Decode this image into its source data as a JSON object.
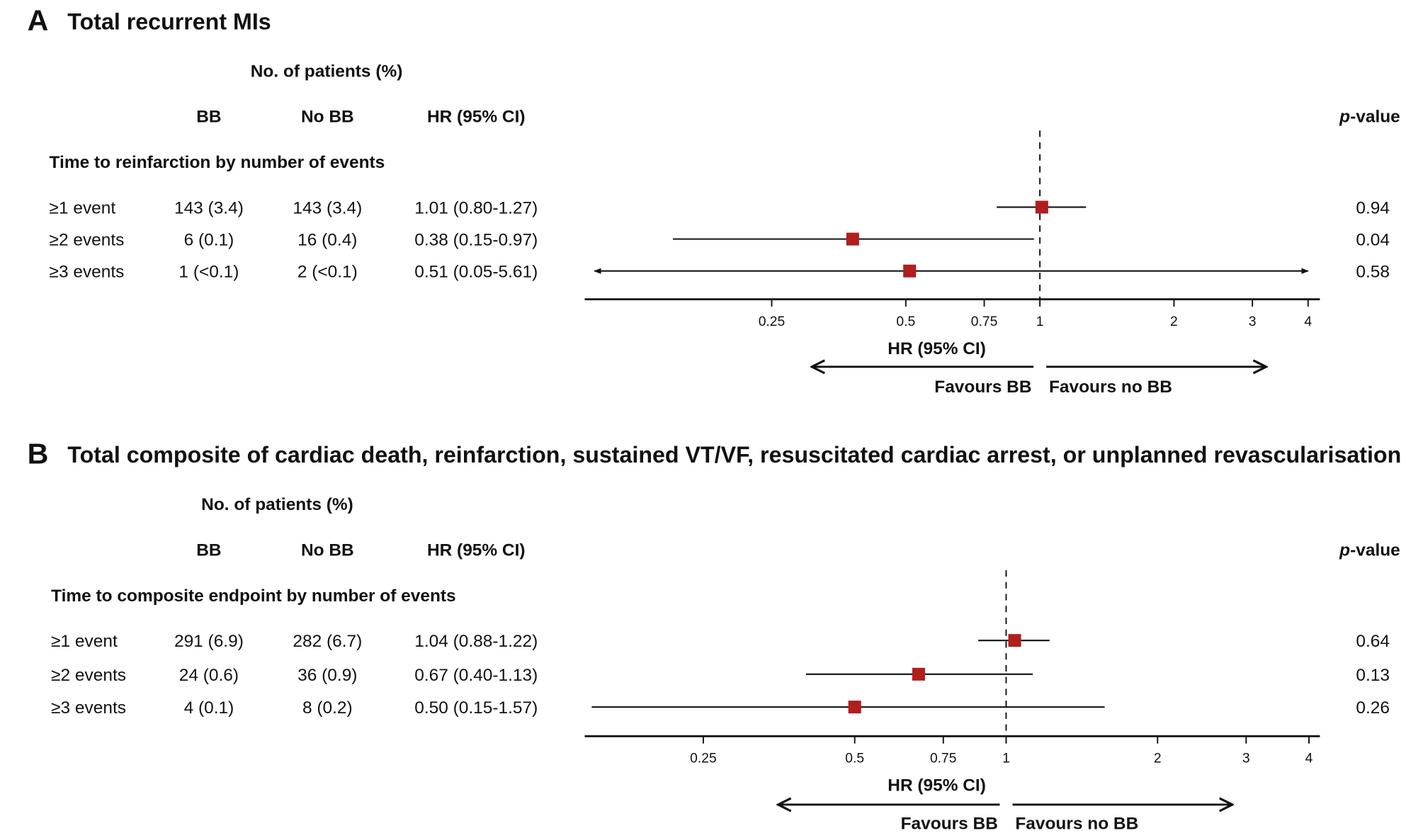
{
  "colors": {
    "marker": "#B01E1E",
    "line": "#111111"
  },
  "chart_data": [
    {
      "type": "forest",
      "panel_letter": "A",
      "title": "Total recurrent MIs",
      "group_header": "No. of patients (%)",
      "columns": {
        "bb": "BB",
        "nobb": "No BB",
        "hr": "HR (95% CI)",
        "p": "p-value",
        "p_italic": "p",
        "p_rest": "-value"
      },
      "subtitle": "Time to reinfarction by number of events",
      "xlabel": "HR (95% CI)",
      "xscale": "log",
      "xlim": [
        0.1,
        4
      ],
      "ticks": [
        "0.25",
        "0.5",
        "0.75",
        "1",
        "2",
        "3",
        "4"
      ],
      "favours_left": "Favours BB",
      "favours_right": "Favours no BB",
      "rows": [
        {
          "label": "≥1 event",
          "bb": "143 (3.4)",
          "nobb": "143 (3.4)",
          "hr_text": "1.01 (0.80-1.27)",
          "hr": 1.01,
          "lo": 0.8,
          "hi": 1.27,
          "p": "0.94"
        },
        {
          "label": "≥2 events",
          "bb": "6 (0.1)",
          "nobb": "16 (0.4)",
          "hr_text": "0.38 (0.15-0.97)",
          "hr": 0.38,
          "lo": 0.15,
          "hi": 0.97,
          "p": "0.04"
        },
        {
          "label": "≥3 events",
          "bb": "1 (<0.1)",
          "nobb": "2 (<0.1)",
          "hr_text": "0.51 (0.05-5.61)",
          "hr": 0.51,
          "lo": 0.05,
          "hi": 5.61,
          "p": "0.58"
        }
      ]
    },
    {
      "type": "forest",
      "panel_letter": "B",
      "title": "Total composite of cardiac death, reinfarction, sustained VT/VF, resuscitated cardiac arrest, or unplanned revascularisation",
      "group_header": "No. of patients (%)",
      "columns": {
        "bb": "BB",
        "nobb": "No BB",
        "hr": "HR (95% CI)",
        "p": "p-value",
        "p_italic": "p",
        "p_rest": "-value"
      },
      "subtitle": "Time to composite endpoint by number of events",
      "xlabel": "HR (95% CI)",
      "xscale": "log",
      "xlim": [
        0.145,
        4
      ],
      "ticks": [
        "0.25",
        "0.5",
        "0.75",
        "1",
        "2",
        "3",
        "4"
      ],
      "favours_left": "Favours BB",
      "favours_right": "Favours no BB",
      "rows": [
        {
          "label": "≥1 event",
          "bb": "291 (6.9)",
          "nobb": "282 (6.7)",
          "hr_text": "1.04 (0.88-1.22)",
          "hr": 1.04,
          "lo": 0.88,
          "hi": 1.22,
          "p": "0.64"
        },
        {
          "label": "≥2 events",
          "bb": "24 (0.6)",
          "nobb": "36 (0.9)",
          "hr_text": "0.67 (0.40-1.13)",
          "hr": 0.67,
          "lo": 0.4,
          "hi": 1.13,
          "p": "0.13"
        },
        {
          "label": "≥3 events",
          "bb": "4 (0.1)",
          "nobb": "8 (0.2)",
          "hr_text": "0.50 (0.15-1.57)",
          "hr": 0.5,
          "lo": 0.15,
          "hi": 1.57,
          "p": "0.26"
        }
      ]
    }
  ]
}
